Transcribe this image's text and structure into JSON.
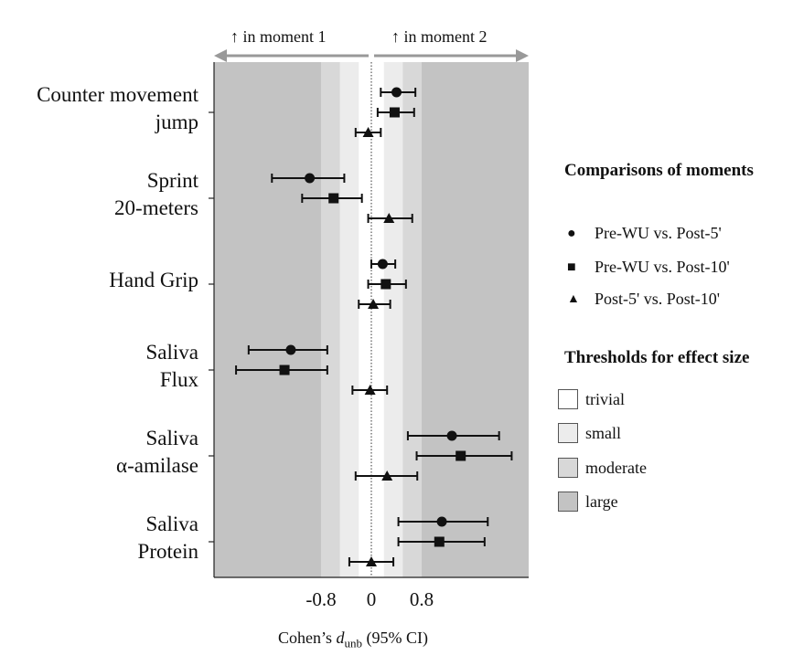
{
  "chart_data": {
    "type": "forest",
    "direction_labels": {
      "left": "↑ in moment 1",
      "right": "↑ in moment 2"
    },
    "x_axis": {
      "label_prefix": "Cohen’s ",
      "label_symbol": "d",
      "label_subscript": "unb",
      "label_suffix": " (95% CI)",
      "ticks": [
        {
          "value": -0.8,
          "label": "-0.8"
        },
        {
          "value": 0,
          "label": "0"
        },
        {
          "value": 0.8,
          "label": "0.8"
        }
      ],
      "xlim": [
        -2.5,
        2.5
      ]
    },
    "thresholds": {
      "title": "Thresholds for effect size",
      "bands": [
        {
          "name": "trivial",
          "limit": 0.2,
          "color": "#ffffff"
        },
        {
          "name": "small",
          "limit": 0.5,
          "color": "#ececec"
        },
        {
          "name": "moderate",
          "limit": 0.8,
          "color": "#d8d8d8"
        },
        {
          "name": "large",
          "limit": 2.5,
          "color": "#c3c3c3"
        }
      ]
    },
    "comparisons": {
      "title": "Comparisons of moments",
      "items": [
        {
          "name": "Pre-WU vs. Post-5'",
          "marker": "circle",
          "symbol": "●"
        },
        {
          "name": "Pre-WU vs. Post-10'",
          "marker": "square",
          "symbol": "■"
        },
        {
          "name": "Post-5' vs. Post-10'",
          "marker": "triangle",
          "symbol": "▲"
        }
      ]
    },
    "categories": [
      {
        "lines": [
          "Counter movement",
          "jump"
        ],
        "estimates": [
          {
            "d": 0.4,
            "lo": 0.15,
            "hi": 0.7
          },
          {
            "d": 0.37,
            "lo": 0.1,
            "hi": 0.68
          },
          {
            "d": -0.05,
            "lo": -0.25,
            "hi": 0.15
          }
        ]
      },
      {
        "lines": [
          "Sprint",
          "20-meters"
        ],
        "estimates": [
          {
            "d": -0.98,
            "lo": -1.58,
            "hi": -0.43
          },
          {
            "d": -0.6,
            "lo": -1.1,
            "hi": -0.15
          },
          {
            "d": 0.28,
            "lo": -0.05,
            "hi": 0.65
          }
        ]
      },
      {
        "lines": [
          "Hand Grip"
        ],
        "estimates": [
          {
            "d": 0.18,
            "lo": 0.0,
            "hi": 0.38
          },
          {
            "d": 0.23,
            "lo": -0.05,
            "hi": 0.55
          },
          {
            "d": 0.03,
            "lo": -0.2,
            "hi": 0.3
          }
        ]
      },
      {
        "lines": [
          "Saliva",
          "Flux"
        ],
        "estimates": [
          {
            "d": -1.28,
            "lo": -1.95,
            "hi": -0.7
          },
          {
            "d": -1.38,
            "lo": -2.15,
            "hi": -0.7
          },
          {
            "d": -0.02,
            "lo": -0.3,
            "hi": 0.25
          }
        ]
      },
      {
        "lines": [
          "Saliva",
          "α-amilase"
        ],
        "estimates": [
          {
            "d": 1.28,
            "lo": 0.58,
            "hi": 2.03
          },
          {
            "d": 1.42,
            "lo": 0.72,
            "hi": 2.23
          },
          {
            "d": 0.25,
            "lo": -0.25,
            "hi": 0.73
          }
        ]
      },
      {
        "lines": [
          "Saliva",
          "Protein"
        ],
        "estimates": [
          {
            "d": 1.12,
            "lo": 0.43,
            "hi": 1.85
          },
          {
            "d": 1.08,
            "lo": 0.43,
            "hi": 1.8
          },
          {
            "d": 0.0,
            "lo": -0.35,
            "hi": 0.35
          }
        ]
      }
    ]
  }
}
